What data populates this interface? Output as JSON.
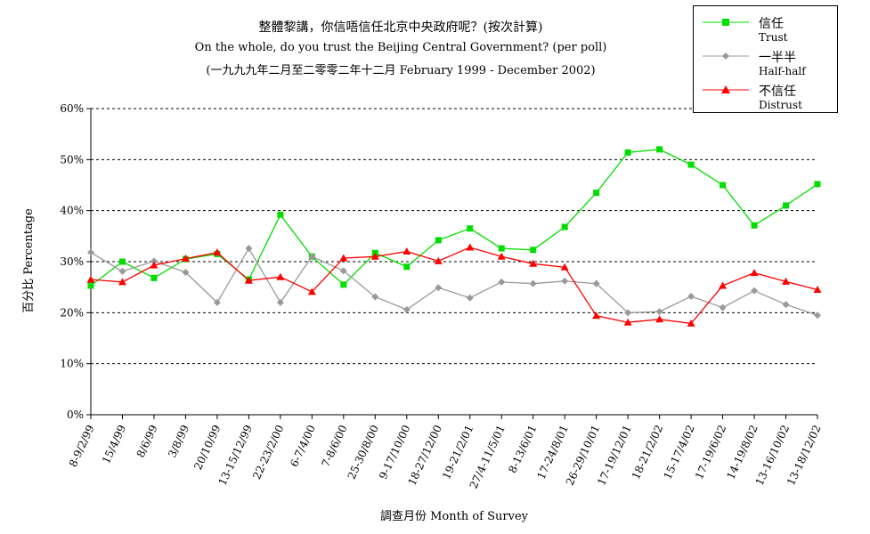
{
  "chart_data": {
    "type": "line",
    "title_zh": "整體黎講，你信唔信任北京中央政府呢？(按次計算)",
    "title_en": "On the whole, do you trust the Beijing Central Government?  (per poll)",
    "subtitle": "(一九九九年二月至二零零二年十二月 February 1999 - December 2002)",
    "xlabel": "調查月份 Month of Survey",
    "ylabel": "百分比 Percentage",
    "ylim": [
      0,
      60
    ],
    "yticks": [
      "0%",
      "10%",
      "20%",
      "30%",
      "40%",
      "50%",
      "60%"
    ],
    "grid": true,
    "legend_position": "top-right",
    "categories": [
      "8-9/2/99",
      "15/4/99",
      "8/6/99",
      "3/8/99",
      "20/10/99",
      "13-15/12/99",
      "22-23/2/00",
      "6-7/4/00",
      "7-8/6/00",
      "25-30/8/00",
      "9-17/10/00",
      "18-27/12/00",
      "19-21/2/01",
      "27/4-11/5/01",
      "8-13/6/01",
      "17-24/8/01",
      "26-29/10/01",
      "17-19/12/01",
      "18-21/2/02",
      "15-17/4/02",
      "17-19/6/02",
      "14-19/8/02",
      "13-16/10/02",
      "13-18/12/02"
    ],
    "series": [
      {
        "name_zh": "信任",
        "name_en": "Trust",
        "color": "#00dd00",
        "marker": "square",
        "values": [
          25.3,
          30.0,
          26.8,
          30.5,
          31.5,
          26.5,
          39.2,
          31.0,
          25.5,
          31.7,
          29.0,
          34.2,
          36.5,
          32.6,
          32.3,
          36.8,
          43.5,
          51.4,
          52.0,
          49.0,
          45.0,
          37.1,
          41.0,
          45.2
        ]
      },
      {
        "name_zh": "一半半",
        "name_en": "Half-half",
        "color": "#999999",
        "marker": "diamond",
        "values": [
          31.8,
          28.1,
          30.1,
          27.9,
          22.0,
          32.6,
          22.0,
          31.0,
          28.2,
          23.1,
          20.6,
          24.9,
          22.9,
          26.0,
          25.7,
          26.2,
          25.7,
          20.0,
          20.2,
          23.2,
          21.0,
          24.3,
          21.6,
          19.5
        ]
      },
      {
        "name_zh": "不信任",
        "name_en": "Distrust",
        "color": "#ff0000",
        "marker": "triangle",
        "values": [
          26.5,
          26.0,
          29.3,
          30.6,
          31.8,
          26.3,
          27.0,
          24.1,
          30.7,
          31.0,
          32.0,
          30.1,
          32.8,
          31.0,
          29.6,
          28.9,
          19.4,
          18.1,
          18.7,
          17.9,
          25.3,
          27.8,
          26.1,
          24.5
        ]
      }
    ]
  }
}
